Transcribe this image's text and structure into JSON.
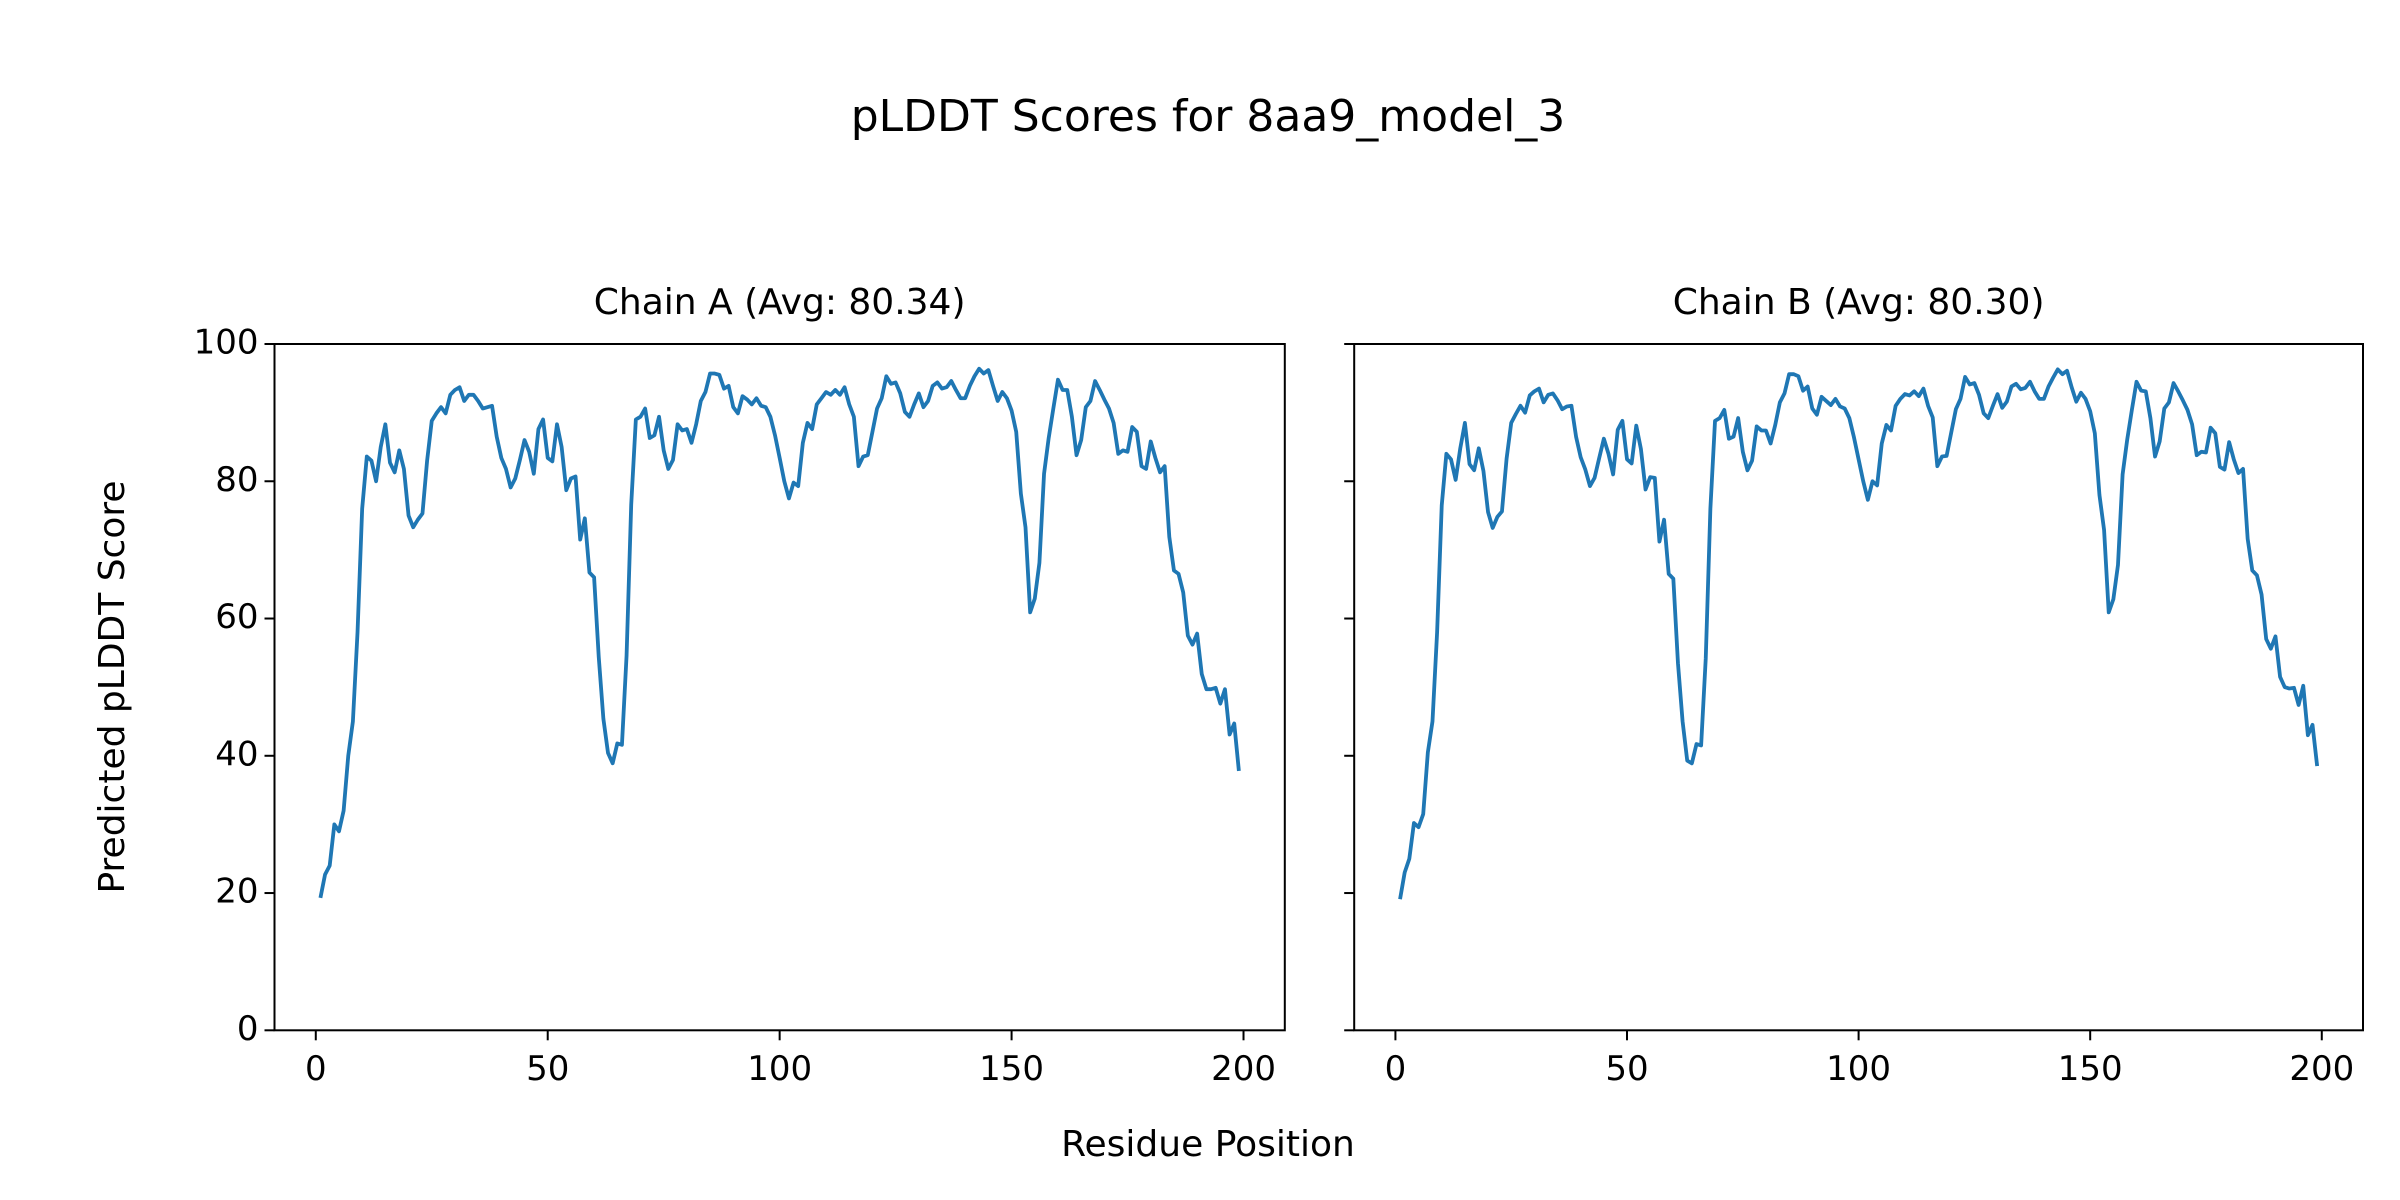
{
  "title": "pLDDT Scores for 8aa9_model_3",
  "x_label": "Residue Position",
  "y_label": "Predicted pLDDT Score",
  "chart_data": [
    {
      "type": "line",
      "title": "Chain A (Avg: 80.34)",
      "x": [
        1,
        2,
        3,
        4,
        5,
        6,
        7,
        8,
        9,
        10,
        11,
        12,
        13,
        14,
        15,
        16,
        17,
        18,
        19,
        20,
        21,
        22,
        23,
        24,
        25,
        26,
        27,
        28,
        29,
        30,
        31,
        32,
        33,
        34,
        35,
        36,
        37,
        38,
        39,
        40,
        41,
        42,
        43,
        44,
        45,
        46,
        47,
        48,
        49,
        50,
        51,
        52,
        53,
        54,
        55,
        56,
        57,
        58,
        59,
        60,
        61,
        62,
        63,
        64,
        65,
        66,
        67,
        68,
        69,
        70,
        71,
        72,
        73,
        74,
        75,
        76,
        77,
        78,
        79,
        80,
        81,
        82,
        83,
        84,
        85,
        86,
        87,
        88,
        89,
        90,
        91,
        92,
        93,
        94,
        95,
        96,
        97,
        98,
        99,
        100,
        101,
        102,
        103,
        104,
        105,
        106,
        107,
        108,
        109,
        110,
        111,
        112,
        113,
        114,
        115,
        116,
        117,
        118,
        119,
        120,
        121,
        122,
        123,
        124,
        125,
        126,
        127,
        128,
        129,
        130,
        131,
        132,
        133,
        134,
        135,
        136,
        137,
        138,
        139,
        140,
        141,
        142,
        143,
        144,
        145,
        146,
        147,
        148,
        149,
        150,
        151,
        152,
        153,
        154,
        155,
        156,
        157,
        158,
        159,
        160,
        161,
        162,
        163,
        164,
        165,
        166,
        167,
        168,
        169,
        170,
        171,
        172,
        173,
        174,
        175,
        176,
        177,
        178,
        179,
        180,
        181,
        182,
        183,
        184,
        185,
        186,
        187,
        188,
        189,
        190,
        191,
        192,
        193,
        194,
        195,
        196,
        197,
        198,
        199
      ],
      "series": [
        {
          "color": "#1f77b4",
          "values": [
            19.3,
            22.7,
            24,
            30,
            29,
            32,
            40,
            45,
            58,
            76,
            83.6,
            83,
            80,
            85,
            88.3,
            82.7,
            81.3,
            84.5,
            81.8,
            75,
            73.3,
            74.4,
            75.3,
            83,
            88.8,
            89.9,
            90.8,
            89.9,
            92.6,
            93.3,
            93.7,
            91.7,
            92.6,
            92.6,
            91.7,
            90.6,
            90.8,
            91,
            86.5,
            83.4,
            81.8,
            79.1,
            80.4,
            83.1,
            86,
            84.3,
            81.1,
            87.6,
            89,
            83.4,
            82.9,
            88.3,
            85,
            78.7,
            80.4,
            80.7,
            71.5,
            74.6,
            66.7,
            66,
            54.4,
            45.4,
            40.4,
            38.9,
            41.8,
            41.6,
            54.6,
            76.6,
            89,
            89.4,
            90.6,
            86.3,
            86.7,
            89.4,
            84.5,
            81.8,
            83.1,
            88.3,
            87.4,
            87.6,
            85.6,
            88.3,
            91.7,
            93,
            95.7,
            95.7,
            95.5,
            93.5,
            93.9,
            90.8,
            89.9,
            92.4,
            91.9,
            91.2,
            92.1,
            91,
            90.8,
            89.4,
            86.7,
            83.4,
            80,
            77.5,
            79.8,
            79.3,
            85.6,
            88.5,
            87.6,
            91.2,
            92.1,
            93,
            92.6,
            93.3,
            92.6,
            93.7,
            91.2,
            89.4,
            82.2,
            83.6,
            83.8,
            87.2,
            90.6,
            92.1,
            95.3,
            94.2,
            94.4,
            92.8,
            90.1,
            89.4,
            91.2,
            92.8,
            90.8,
            91.7,
            93.9,
            94.4,
            93.5,
            93.7,
            94.6,
            93.3,
            92.1,
            92.1,
            93.9,
            95.3,
            96.4,
            95.7,
            96.2,
            93.9,
            91.7,
            93,
            92.1,
            90.3,
            87.2,
            78.2,
            73.3,
            60.9,
            62.9,
            68.1,
            81.1,
            86.3,
            90.6,
            94.8,
            93.3,
            93.3,
            89.4,
            83.8,
            86,
            90.8,
            91.7,
            94.6,
            93.3,
            91.9,
            90.6,
            88.5,
            84,
            84.5,
            84.3,
            87.9,
            87.2,
            82.2,
            81.8,
            85.8,
            83.4,
            81.3,
            82.2,
            71.9,
            67,
            66.5,
            63.8,
            57.5,
            56.2,
            57.8,
            51.9,
            49.7,
            49.7,
            49.9,
            47.6,
            49.7,
            43.1,
            44.7,
            37.8
          ]
        }
      ],
      "xlim": [
        -8.9,
        208.9
      ],
      "xticks": [
        0,
        50,
        100,
        150,
        200
      ],
      "ylim": [
        0,
        100
      ],
      "yticks": [
        0,
        20,
        40,
        60,
        80,
        100
      ]
    },
    {
      "type": "line",
      "title": "Chain B (Avg: 80.30)",
      "x": [
        1,
        2,
        3,
        4,
        5,
        6,
        7,
        8,
        9,
        10,
        11,
        12,
        13,
        14,
        15,
        16,
        17,
        18,
        19,
        20,
        21,
        22,
        23,
        24,
        25,
        26,
        27,
        28,
        29,
        30,
        31,
        32,
        33,
        34,
        35,
        36,
        37,
        38,
        39,
        40,
        41,
        42,
        43,
        44,
        45,
        46,
        47,
        48,
        49,
        50,
        51,
        52,
        53,
        54,
        55,
        56,
        57,
        58,
        59,
        60,
        61,
        62,
        63,
        64,
        65,
        66,
        67,
        68,
        69,
        70,
        71,
        72,
        73,
        74,
        75,
        76,
        77,
        78,
        79,
        80,
        81,
        82,
        83,
        84,
        85,
        86,
        87,
        88,
        89,
        90,
        91,
        92,
        93,
        94,
        95,
        96,
        97,
        98,
        99,
        100,
        101,
        102,
        103,
        104,
        105,
        106,
        107,
        108,
        109,
        110,
        111,
        112,
        113,
        114,
        115,
        116,
        117,
        118,
        119,
        120,
        121,
        122,
        123,
        124,
        125,
        126,
        127,
        128,
        129,
        130,
        131,
        132,
        133,
        134,
        135,
        136,
        137,
        138,
        139,
        140,
        141,
        142,
        143,
        144,
        145,
        146,
        147,
        148,
        149,
        150,
        151,
        152,
        153,
        154,
        155,
        156,
        157,
        158,
        159,
        160,
        161,
        162,
        163,
        164,
        165,
        166,
        167,
        168,
        169,
        170,
        171,
        172,
        173,
        174,
        175,
        176,
        177,
        178,
        179,
        180,
        181,
        182,
        183,
        184,
        185,
        186,
        187,
        188,
        189,
        190,
        191,
        192,
        193,
        194,
        195,
        196,
        197,
        198,
        199
      ],
      "series": [
        {
          "color": "#1f77b4",
          "values": [
            19.1,
            23,
            25,
            30.2,
            29.6,
            31.5,
            40.5,
            45,
            58,
            76.5,
            84,
            83.2,
            80.2,
            84.8,
            88.5,
            82.5,
            81.6,
            84.8,
            81.5,
            75.5,
            73.2,
            74.8,
            75.6,
            83.3,
            88.5,
            89.8,
            91,
            90,
            92.5,
            93.1,
            93.5,
            91.5,
            92.6,
            92.8,
            91.8,
            90.5,
            90.9,
            91,
            86.5,
            83.5,
            81.7,
            79.3,
            80.5,
            83.4,
            86.2,
            84,
            81,
            87.5,
            88.8,
            83.2,
            82.6,
            88.1,
            84.7,
            78.8,
            80.6,
            80.5,
            71.2,
            74.4,
            66.5,
            65.8,
            53.5,
            45,
            39.3,
            38.9,
            41.7,
            41.5,
            54.2,
            76,
            88.8,
            89.2,
            90.4,
            86.2,
            86.5,
            89.2,
            84.3,
            81.6,
            83,
            88,
            87.4,
            87.4,
            85.5,
            88.2,
            91.5,
            92.8,
            95.6,
            95.6,
            95.3,
            93.2,
            93.8,
            90.6,
            89.7,
            92.3,
            91.7,
            91.1,
            92,
            90.9,
            90.6,
            89.2,
            86.4,
            83.2,
            80,
            77.3,
            80,
            79.4,
            85.5,
            88.2,
            87.4,
            91,
            92,
            92.7,
            92.5,
            93.1,
            92.4,
            93.5,
            91,
            89.3,
            82.2,
            83.6,
            83.7,
            87.1,
            90.5,
            92,
            95.2,
            94.1,
            94.3,
            92.6,
            89.9,
            89.2,
            91,
            92.7,
            90.7,
            91.6,
            93.8,
            94.2,
            93.4,
            93.6,
            94.5,
            93.1,
            92,
            92,
            93.8,
            95.1,
            96.3,
            95.6,
            96.1,
            93.7,
            91.6,
            92.9,
            92,
            90.2,
            87,
            78,
            72.9,
            60.9,
            62.8,
            67.8,
            81,
            86.1,
            90.4,
            94.5,
            93.2,
            93.1,
            89.2,
            83.6,
            85.8,
            90.6,
            91.5,
            94.3,
            93.1,
            91.8,
            90.4,
            88.3,
            83.8,
            84.3,
            84.2,
            87.8,
            87,
            82.1,
            81.7,
            85.7,
            83.2,
            81.2,
            81.8,
            71.6,
            67,
            66.3,
            63.5,
            57,
            55.6,
            57.4,
            51.5,
            50,
            49.8,
            49.9,
            47.4,
            50.2,
            43,
            44.5,
            38.5
          ]
        }
      ],
      "xlim": [
        -8.9,
        208.9
      ],
      "xticks": [
        0,
        50,
        100,
        150,
        200
      ],
      "ylim": [
        0,
        100
      ],
      "yticks": [
        0,
        20,
        40,
        60,
        80,
        100
      ]
    }
  ]
}
